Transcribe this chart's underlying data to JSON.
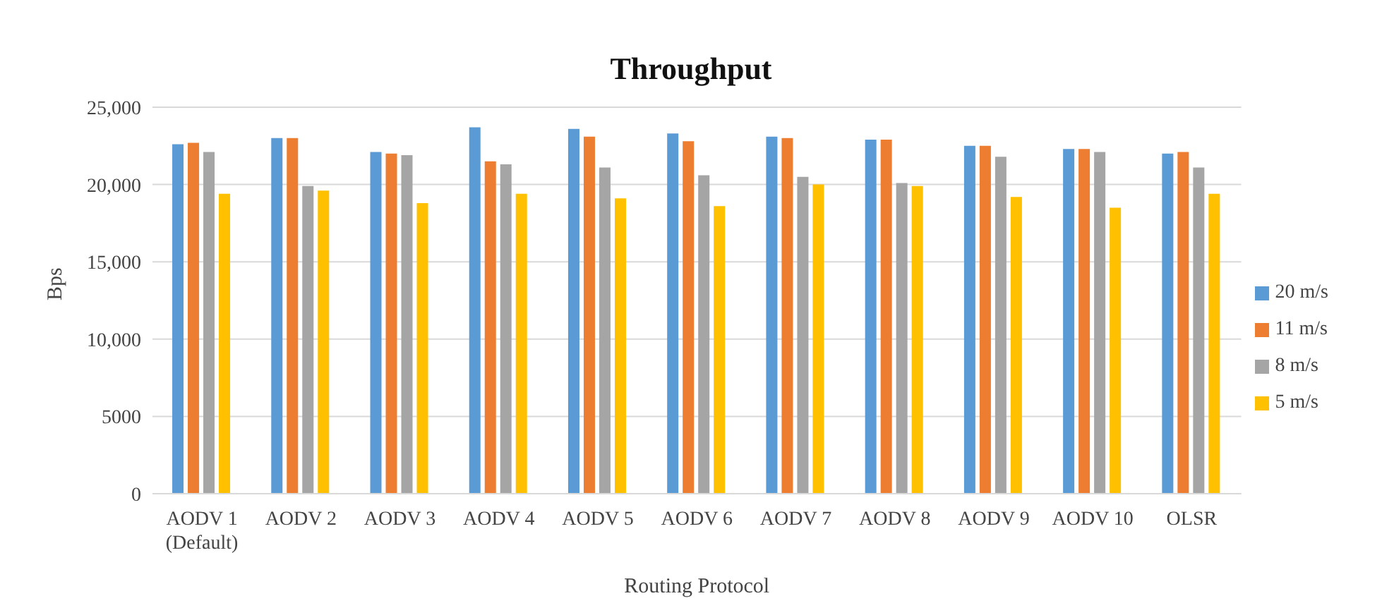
{
  "chart_data": {
    "type": "bar",
    "title": "Throughput",
    "xlabel": "Routing Protocol",
    "ylabel": "Bps",
    "categories": [
      "AODV 1\n(Default)",
      "AODV 2",
      "AODV 3",
      "AODV 4",
      "AODV 5",
      "AODV 6",
      "AODV 7",
      "AODV 8",
      "AODV 9",
      "AODV 10",
      "OLSR"
    ],
    "series": [
      {
        "name": "20 m/s",
        "color": "#5b9bd5",
        "values": [
          22600,
          23000,
          22100,
          23700,
          23600,
          23300,
          23100,
          22900,
          22500,
          22300,
          22000
        ]
      },
      {
        "name": "11 m/s",
        "color": "#ed7d31",
        "values": [
          22700,
          23000,
          22000,
          21500,
          23100,
          22800,
          23000,
          22900,
          22500,
          22300,
          22100
        ]
      },
      {
        "name": "8 m/s",
        "color": "#a5a5a5",
        "values": [
          22100,
          19900,
          21900,
          21300,
          21100,
          20600,
          20500,
          20100,
          21800,
          22100,
          21100
        ]
      },
      {
        "name": "5 m/s",
        "color": "#ffc000",
        "values": [
          19400,
          19600,
          18800,
          19400,
          19100,
          18600,
          20000,
          19900,
          19200,
          18500,
          19400
        ]
      }
    ],
    "ylim": [
      0,
      25000
    ],
    "yticks": [
      0,
      5000,
      {
        "value": 10000,
        "label": "10,000"
      },
      {
        "value": 15000,
        "label": "15,000"
      },
      {
        "value": 20000,
        "label": "20,000"
      },
      {
        "value": 25000,
        "label": "25,000"
      }
    ],
    "grid": "y",
    "legend": "right"
  }
}
